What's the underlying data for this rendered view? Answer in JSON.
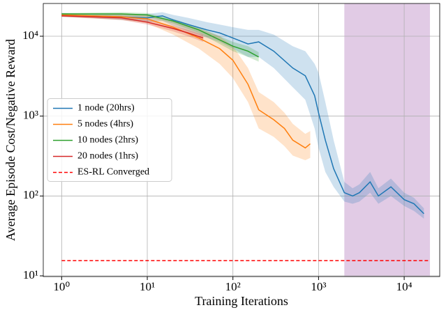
{
  "chart_data": {
    "type": "line",
    "xlabel": "Training Iterations",
    "ylabel": "Average Episode Cost/Negative Reward",
    "xscale": "log",
    "yscale": "log",
    "xlim": [
      0.61,
      26000
    ],
    "ylim": [
      9.8,
      25700
    ],
    "xticks": [
      {
        "value": 1,
        "label": "10⁰"
      },
      {
        "value": 10,
        "label": "10¹"
      },
      {
        "value": 100,
        "label": "10²"
      },
      {
        "value": 1000,
        "label": "10³"
      },
      {
        "value": 10000,
        "label": "10⁴"
      }
    ],
    "yticks": [
      {
        "value": 10,
        "label": "10¹"
      },
      {
        "value": 100,
        "label": "10²"
      },
      {
        "value": 1000,
        "label": "10³"
      },
      {
        "value": 10000,
        "label": "10⁴"
      }
    ],
    "grid": true,
    "legend": "center left",
    "span": {
      "x": [
        2000,
        20000
      ],
      "color": "#c9a0cf"
    },
    "series": [
      {
        "name": "1 node (20hrs)",
        "color": "#1f77b4",
        "x": [
          1,
          2,
          5,
          10,
          15,
          20,
          30,
          50,
          70,
          100,
          150,
          200,
          300,
          500,
          700,
          900,
          1000,
          1200,
          1500,
          2000,
          2500,
          3000,
          4000,
          5000,
          7000,
          10000,
          13000,
          17000
        ],
        "values": [
          18500,
          18000,
          17500,
          17000,
          18000,
          16000,
          14000,
          12000,
          11000,
          9500,
          8000,
          8500,
          6500,
          4000,
          3200,
          1800,
          1100,
          500,
          220,
          110,
          100,
          110,
          150,
          100,
          130,
          90,
          80,
          60
        ],
        "lower": [
          17500,
          17000,
          16000,
          15000,
          15500,
          13500,
          11500,
          9500,
          8500,
          7000,
          5500,
          5500,
          4000,
          2300,
          1600,
          700,
          400,
          200,
          130,
          85,
          80,
          85,
          110,
          80,
          100,
          75,
          65,
          52
        ],
        "upper": [
          19500,
          19000,
          19000,
          19000,
          20000,
          18500,
          17000,
          15000,
          14000,
          13000,
          12000,
          12000,
          10500,
          7500,
          6500,
          4500,
          3500,
          1500,
          500,
          150,
          125,
          140,
          200,
          125,
          165,
          110,
          95,
          70
        ]
      },
      {
        "name": "5 nodes (4hrs)",
        "color": "#ff7f0e",
        "x": [
          1,
          5,
          10,
          20,
          40,
          70,
          100,
          150,
          200,
          300,
          400,
          500,
          700,
          800
        ],
        "values": [
          18500,
          17500,
          16500,
          13000,
          9500,
          7000,
          5000,
          2500,
          1200,
          900,
          700,
          500,
          400,
          450
        ],
        "lower": [
          17500,
          16000,
          14500,
          10500,
          7000,
          4500,
          3000,
          1500,
          700,
          550,
          420,
          320,
          280,
          300
        ],
        "upper": [
          19500,
          19000,
          18500,
          15500,
          12500,
          10000,
          7500,
          4000,
          2000,
          1500,
          1100,
          800,
          600,
          650
        ]
      },
      {
        "name": "10 nodes (2hrs)",
        "color": "#2ca02c",
        "x": [
          1,
          5,
          10,
          20,
          40,
          70,
          100,
          150,
          200
        ],
        "values": [
          19000,
          19000,
          18500,
          15500,
          12000,
          9000,
          7500,
          6500,
          5500
        ],
        "lower": [
          18500,
          18000,
          17500,
          14500,
          11000,
          8000,
          6500,
          5500,
          4800
        ],
        "upper": [
          19500,
          20000,
          19500,
          16500,
          13000,
          10000,
          8500,
          7500,
          6300
        ]
      },
      {
        "name": "20 nodes (1hrs)",
        "color": "#d62728",
        "x": [
          1,
          5,
          10,
          20,
          30,
          45
        ],
        "values": [
          18000,
          17000,
          15000,
          12500,
          11000,
          9500
        ],
        "lower": [
          17500,
          16000,
          14000,
          11500,
          10000,
          8500
        ],
        "upper": [
          18500,
          18000,
          16000,
          13500,
          12000,
          10500
        ]
      }
    ],
    "reference_line": {
      "name": "ES-RL Converged",
      "value": 15.5,
      "x": [
        1,
        20000
      ],
      "color": "#ff0000"
    }
  }
}
